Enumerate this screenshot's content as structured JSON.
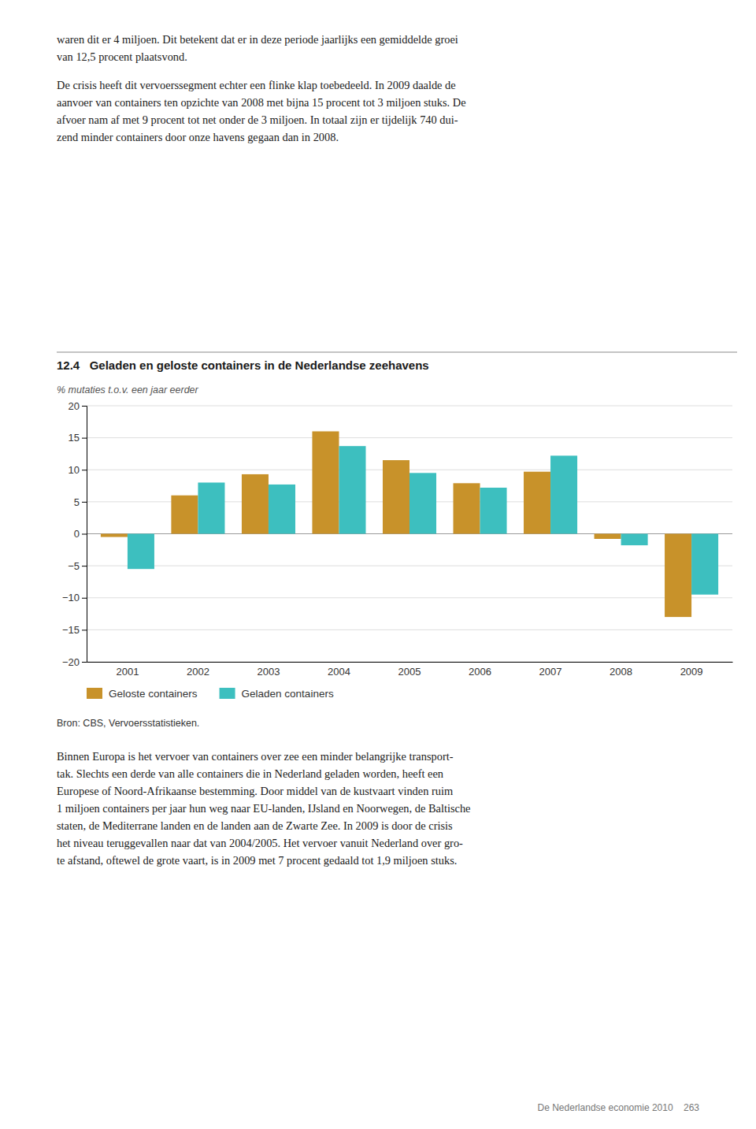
{
  "header_text": [
    [
      "waren dit er 4 miljoen. Dit betekent dat er in deze periode jaarlijks een gemiddelde groei",
      "van 12,5 procent plaatsvond."
    ],
    [
      "De crisis heeft dit vervoerssegment echter een flinke klap toebedeeld. In 2009 daalde de",
      "aanvoer van containers ten opzichte van 2008 met bijna 15 procent tot 3 miljoen stuks. De",
      "afvoer nam af met 9 procent tot net onder de 3 miljoen. In totaal zijn er tijdelijk 740 dui-",
      "zend minder containers door onze havens gegaan dan in 2008."
    ]
  ],
  "chart_data": {
    "type": "bar",
    "title": "12.4   Geladen en geloste containers in de Nederlandse zeehavens",
    "ylabel": "% mutaties t.o.v. een jaar eerder",
    "categories": [
      "2001",
      "2002",
      "2003",
      "2004",
      "2005",
      "2006",
      "2007",
      "2008",
      "2009"
    ],
    "series": [
      {
        "name": "Geloste containers",
        "color": "#C8922A",
        "values": [
          -0.5,
          6.0,
          9.3,
          16.0,
          11.5,
          7.9,
          9.7,
          -0.8,
          -13.0
        ]
      },
      {
        "name": "Geladen containers",
        "color": "#3DBFBF",
        "values": [
          -5.5,
          8.0,
          7.7,
          13.7,
          9.5,
          7.2,
          12.2,
          -1.8,
          -9.5
        ]
      }
    ],
    "ylim": [
      -20,
      20
    ],
    "yticks": [
      {
        "value": -20,
        "label": "−20"
      },
      {
        "value": -15,
        "label": "−15"
      },
      {
        "value": -10,
        "label": "−10"
      },
      {
        "value": -5,
        "label": "−5"
      },
      0,
      5,
      10,
      15,
      20
    ],
    "grid": true,
    "legend": "bottom",
    "source": "Bron: CBS, Vervoersstatistieken."
  },
  "body_text": [
    "Binnen Europa is het vervoer van containers over zee een minder belangrijke transport-",
    "tak. Slechts een derde van alle containers die in Nederland geladen worden, heeft een",
    "Europese of Noord-Afrikaanse bestemming. Door middel van de kustvaart vinden ruim",
    "1 miljoen containers per jaar hun weg naar EU-landen, IJsland en Noorwegen, de Baltische",
    "staten, de Mediterrane landen en de landen aan de Zwarte Zee. In 2009 is door de crisis",
    "het niveau teruggevallen naar dat van 2004/2005. Het vervoer vanuit Nederland over gro-",
    "te afstand, oftewel de grote vaart, is in 2009 met 7 procent gedaald tot 1,9 miljoen stuks."
  ],
  "page_footer": "De Nederlandse economie 2010    263"
}
